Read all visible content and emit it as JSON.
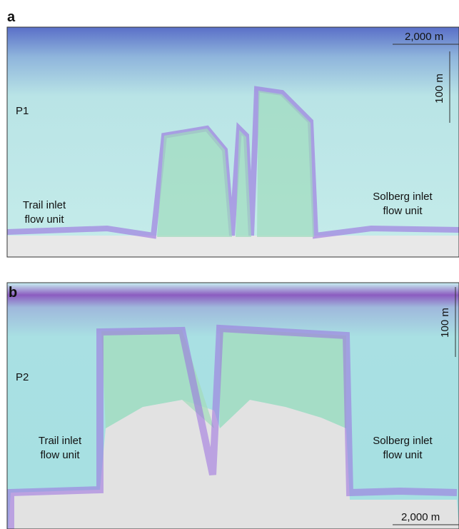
{
  "panels": [
    {
      "label": "a",
      "profile": "P1",
      "scale_horizontal": "2,000 m",
      "scale_vertical": "100 m",
      "left_unit": [
        "Trail inlet",
        "flow unit"
      ],
      "right_unit": [
        "Solberg inlet",
        "flow unit"
      ]
    },
    {
      "label": "b",
      "profile": "P2",
      "scale_horizontal": "2,000 m",
      "scale_vertical": "100 m",
      "left_unit": [
        "Trail inlet",
        "flow unit"
      ],
      "right_unit": [
        "Solberg inlet",
        "flow unit"
      ]
    }
  ]
}
